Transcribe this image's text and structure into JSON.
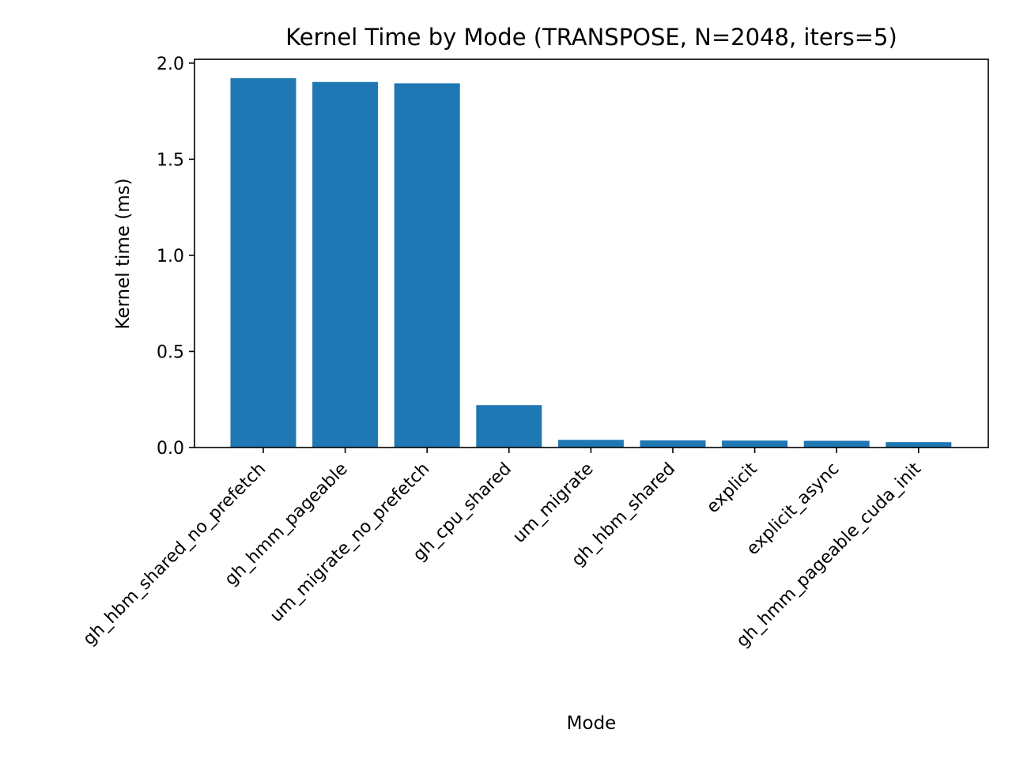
{
  "chart_data": {
    "type": "bar",
    "title": "Kernel Time by Mode (TRANSPOSE, N=2048, iters=5)",
    "xlabel": "Mode",
    "ylabel": "Kernel time (ms)",
    "categories": [
      "gh_hbm_shared_no_prefetch",
      "gh_hmm_pageable",
      "um_migrate_no_prefetch",
      "gh_cpu_shared",
      "um_migrate",
      "gh_hbm_shared",
      "explicit",
      "explicit_async",
      "gh_hmm_pageable_cuda_init"
    ],
    "values": [
      1.922,
      1.902,
      1.895,
      0.221,
      0.04,
      0.037,
      0.036,
      0.035,
      0.028
    ],
    "ylim": [
      0,
      2.02
    ],
    "yticks": [
      0.0,
      0.5,
      1.0,
      1.5,
      2.0
    ],
    "ytick_labels": [
      "0.0",
      "0.5",
      "1.0",
      "1.5",
      "2.0"
    ],
    "bar_color": "#1f77b4",
    "grid": false,
    "legend": "none"
  }
}
